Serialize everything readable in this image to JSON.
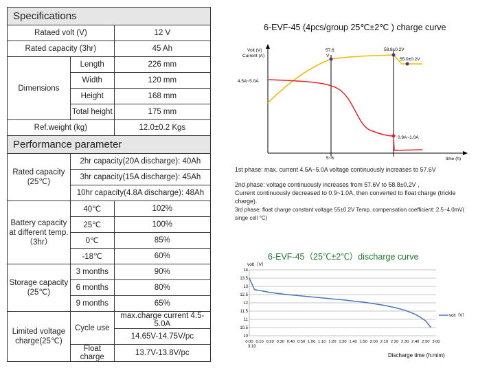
{
  "spec_table": {
    "specifications_header": "Specifications",
    "rated_volt_label": "Rataed volt (V)",
    "rated_volt_value": "12 V",
    "rated_capacity_label": "Rated capacity (3hr)",
    "rated_capacity_value": "45 Ah",
    "dimensions_label": "Dimensions",
    "length_label": "Length",
    "length_value": "226 mm",
    "width_label": "Width",
    "width_value": "120 mm",
    "height_label": "Height",
    "height_value": "168 mm",
    "total_height_label": "Total height",
    "total_height_value": "175 mm",
    "weight_label": "Ref.weight (kg)",
    "weight_value": "12.0±0.2 Kgs",
    "performance_header": "Performance parameter",
    "rated_cap_label": "Rated capacity (25℃)",
    "rated_cap_rows": [
      "2hr capacity(20A discharge): 40Ah",
      "3hr capacity(15A discharge): 45Ah",
      "10hr capacity(4.8A discharge): 48Ah"
    ],
    "batt_cap_label": "Battery capacity at different temp. （3hr）",
    "temp_rows": [
      {
        "temp": "40℃",
        "value": "102%"
      },
      {
        "temp": "25℃",
        "value": "100%"
      },
      {
        "temp": "0℃",
        "value": "85%"
      },
      {
        "temp": "-18℃",
        "value": "60%"
      }
    ],
    "storage_label": "Storage capacity (25℃)",
    "storage_rows": [
      {
        "period": "3 months",
        "value": "90%"
      },
      {
        "period": "6 months",
        "value": "80%"
      },
      {
        "period": "9 months",
        "value": "65%"
      }
    ],
    "limited_label": "Limited voltage charge(25℃)",
    "cycle_use_label": "Cycle use",
    "cycle_rows": [
      "max.charge current 4.5-5.0A",
      "14.65V-14.75V/pc"
    ],
    "float_label": "Float charge",
    "float_value": "13.7V-13.8V/pc"
  },
  "charge_chart": {
    "title": "6-EVF-45 (4pcs/group  25℃±2℃ ) charge curve",
    "y_label_1": "Volt (V)",
    "y_label_2": "Current (A)",
    "x_label": "time (h)",
    "label_current": "4.5A~5.0A",
    "label_576": "57.6",
    "label_v": "V",
    "label_588": "58.8±0.2V",
    "label_550": "55.0±0.2V",
    "label_09": "0.9A~1.0A",
    "label_56": "5~6",
    "phase1": "1st phase: max. current 4.5A~5.0A voltage continuously increases to 57.6V",
    "phase2a": "2nd phase: voltage continuously increases from 57.6V to 58.8±0.2V ,",
    "phase2b": "Current continuously decreased to 0.9~1.0A, then converted to float charge (trickle charge).",
    "phase3": "3rd phase: float charge constant voltage 55±0.2V  Temp. compensation coefficient: 2.5~4.0mV( singe cell °C)",
    "colors": {
      "voltage": "#f5b800",
      "current": "#e8202a",
      "marker": "#5b2c83"
    }
  },
  "chart_data": {
    "type": "line",
    "title": "6-EVF-45（25℃±2℃）discharge curve",
    "ylabel": "volt（V）",
    "xlabel": "Discharge time (h:mim)",
    "x_ticks": [
      "0:00",
      "0:10",
      "0:20",
      "0:30",
      "0:40",
      "0:50",
      "1:00",
      "1:10",
      "1:20",
      "1:30",
      "1:40",
      "1:50",
      "2:00",
      "2:10",
      "2:20",
      "2:30",
      "2:40",
      "2:50",
      "3:00"
    ],
    "x_tick_extra": "3:10",
    "ylim": [
      10,
      14
    ],
    "y_ticks": [
      "10",
      "10.5",
      "11",
      "11.5",
      "12",
      "12.5",
      "13",
      "13.5",
      "14"
    ],
    "grid": true,
    "legend_position": "right",
    "series": [
      {
        "name": "volt（V）",
        "color": "#4a72c0",
        "x": [
          0,
          5,
          10,
          20,
          30,
          40,
          50,
          60,
          70,
          80,
          90,
          100,
          110,
          120,
          130,
          140,
          150,
          160,
          165,
          170,
          175
        ],
        "values": [
          13.5,
          12.8,
          12.75,
          12.63,
          12.55,
          12.48,
          12.42,
          12.36,
          12.3,
          12.24,
          12.18,
          12.11,
          12.04,
          11.95,
          11.85,
          11.72,
          11.55,
          11.3,
          11.12,
          10.9,
          10.5
        ]
      }
    ]
  }
}
